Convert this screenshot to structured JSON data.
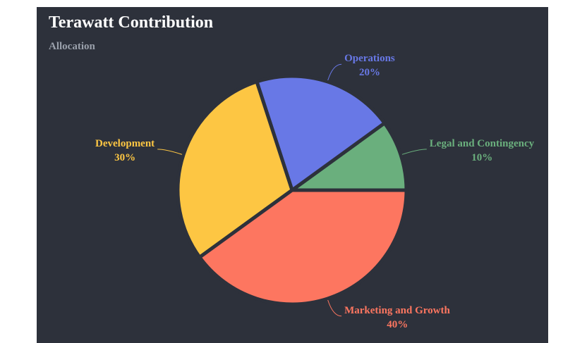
{
  "chart_data": {
    "type": "pie",
    "title": "Terawatt Contribution",
    "subtitle": "Allocation",
    "slices": [
      {
        "label": "Legal and Contingency",
        "value": 10,
        "display": "10%",
        "color": "#6aaf7d"
      },
      {
        "label": "Operations",
        "value": 20,
        "display": "20%",
        "color": "#6878e6"
      },
      {
        "label": "Development",
        "value": 30,
        "display": "30%",
        "color": "#fdc643"
      },
      {
        "label": "Marketing and Growth",
        "value": 40,
        "display": "40%",
        "color": "#fd7660"
      }
    ],
    "background": "#2d313b",
    "legend": "none"
  }
}
